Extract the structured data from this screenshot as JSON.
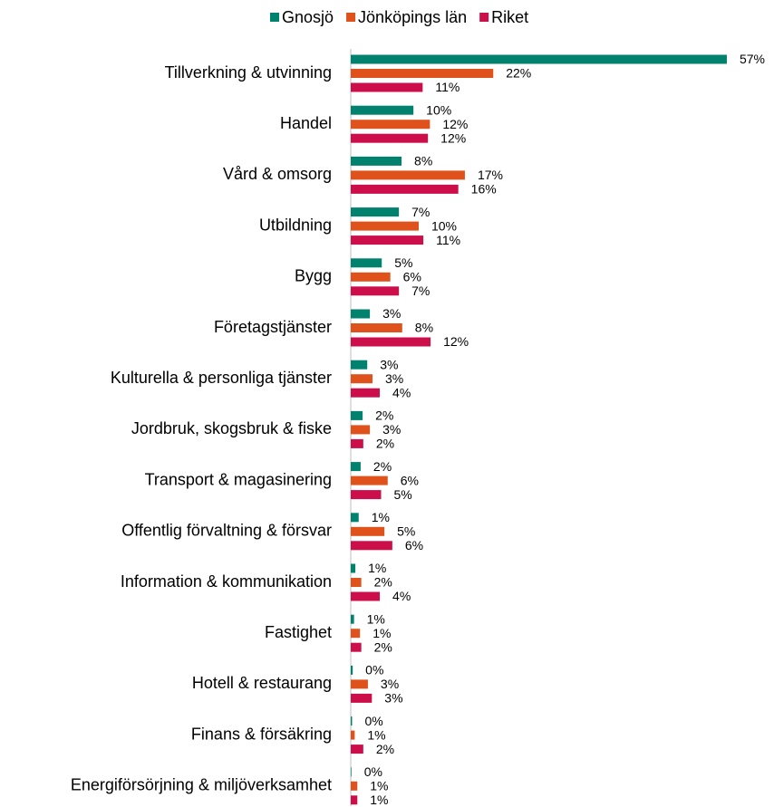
{
  "chart_data": {
    "type": "bar",
    "orientation": "horizontal",
    "categories": [
      "Tillverkning & utvinning",
      "Handel",
      "Vård & omsorg",
      "Utbildning",
      "Bygg",
      "Företagstjänster",
      "Kulturella & personliga tjänster",
      "Jordbruk, skogsbruk & fiske",
      "Transport & magasinering",
      "Offentlig förvaltning & försvar",
      "Information & kommunikation",
      "Fastighet",
      "Hotell & restaurang",
      "Finans & försäkring",
      "Energiförsörjning & miljöverksamhet"
    ],
    "series": [
      {
        "name": "Gnosjö",
        "color": "#00826f",
        "values": [
          57,
          9.5,
          7.7,
          7.3,
          4.7,
          2.9,
          2.5,
          1.8,
          1.5,
          1.2,
          0.7,
          0.5,
          0.3,
          0.2,
          0.1
        ],
        "value_labels": [
          "57%",
          "10%",
          "8%",
          "7%",
          "5%",
          "3%",
          "3%",
          "2%",
          "2%",
          "1%",
          "1%",
          "1%",
          "0%",
          "0%",
          "0%"
        ]
      },
      {
        "name": "Jönköpings län",
        "color": "#e0521b",
        "values": [
          21.6,
          12.0,
          17.3,
          10.3,
          6.0,
          7.8,
          3.3,
          2.9,
          5.6,
          5.1,
          1.6,
          1.4,
          2.6,
          0.6,
          1.0
        ],
        "value_labels": [
          "22%",
          "12%",
          "17%",
          "10%",
          "6%",
          "8%",
          "3%",
          "3%",
          "6%",
          "5%",
          "2%",
          "1%",
          "3%",
          "1%",
          "1%"
        ]
      },
      {
        "name": "Riket",
        "color": "#cc0f4b",
        "values": [
          10.9,
          11.7,
          16.3,
          11.0,
          7.3,
          12.1,
          4.4,
          1.9,
          4.6,
          6.3,
          4.4,
          1.6,
          3.2,
          1.9,
          1.0
        ],
        "value_labels": [
          "11%",
          "12%",
          "16%",
          "11%",
          "7%",
          "12%",
          "4%",
          "2%",
          "5%",
          "6%",
          "4%",
          "2%",
          "3%",
          "2%",
          "1%"
        ]
      }
    ]
  }
}
